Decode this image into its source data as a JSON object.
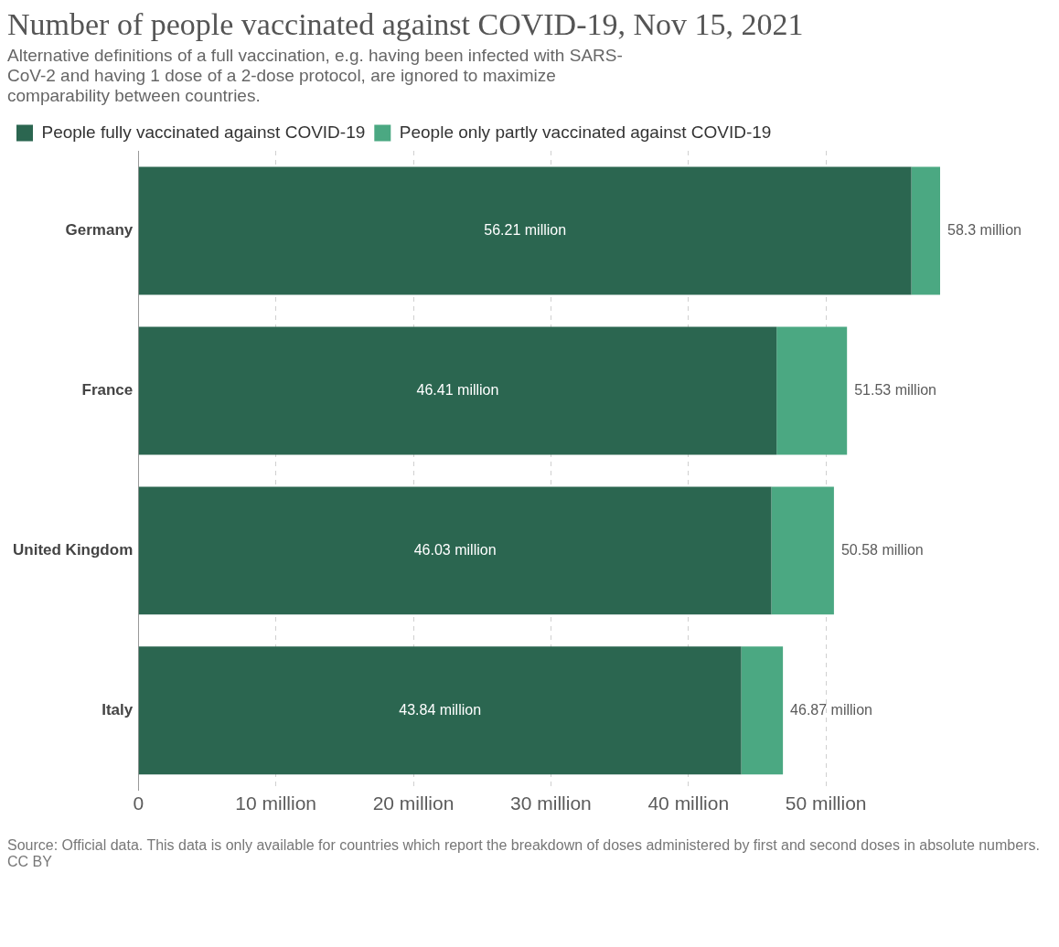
{
  "chart_data": {
    "type": "bar",
    "orientation": "horizontal",
    "stacked": true,
    "title": "Number of people vaccinated against COVID-19, Nov 15, 2021",
    "subtitle": "Alternative definitions of a full vaccination, e.g. having been infected with SARS-CoV-2 and having 1 dose of a 2-dose protocol, are ignored to maximize comparability between countries.",
    "categories": [
      "Germany",
      "France",
      "United Kingdom",
      "Italy"
    ],
    "series": [
      {
        "name": "People fully vaccinated against COVID-19",
        "color": "#2b6650",
        "values": [
          56.21,
          46.41,
          46.03,
          43.84
        ],
        "value_labels": [
          "56.21 million",
          "46.41 million",
          "46.03 million",
          "43.84 million"
        ]
      },
      {
        "name": "People only partly vaccinated against COVID-19",
        "color": "#4ba882",
        "values": [
          2.09,
          5.12,
          4.55,
          3.03
        ]
      }
    ],
    "totals": [
      "58.3 million",
      "51.53 million",
      "50.58 million",
      "46.87 million"
    ],
    "xlim": [
      0,
      58.3
    ],
    "xticks": [
      0,
      {
        "value": 10,
        "label": "10 million"
      },
      {
        "value": 20,
        "label": "20 million"
      },
      {
        "value": 30,
        "label": "30 million"
      },
      {
        "value": 40,
        "label": "40 million"
      },
      {
        "value": 50,
        "label": "50 million"
      }
    ],
    "grid": "x",
    "legend": "top left",
    "annotations": [
      "Source: Official data. This data is only available for countries which report the breakdown of doses administered by first and second doses in absolute numbers.",
      "CC BY"
    ]
  }
}
